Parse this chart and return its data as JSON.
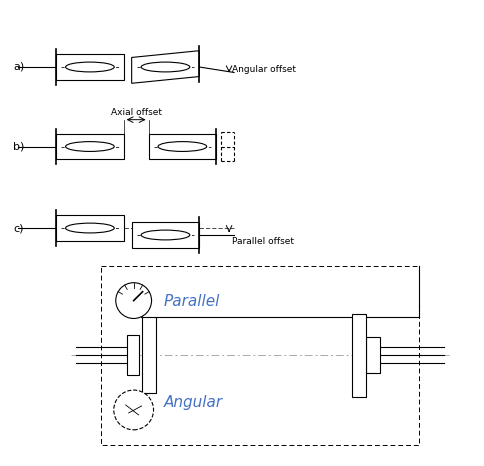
{
  "bg_color": "#ffffff",
  "line_color": "#000000",
  "label_color_blue": "#4472c4",
  "label_color_orange": "#c55a11",
  "fig_width": 4.85,
  "fig_height": 4.66,
  "dpi": 100,
  "labels": {
    "a": "a)",
    "b": "b)",
    "c": "c)",
    "angular_offset": "Angular offset",
    "axial_offset": "Axial offset",
    "parallel_offset": "Parallel offset",
    "parallel": "Parallel",
    "angular": "Angular"
  }
}
